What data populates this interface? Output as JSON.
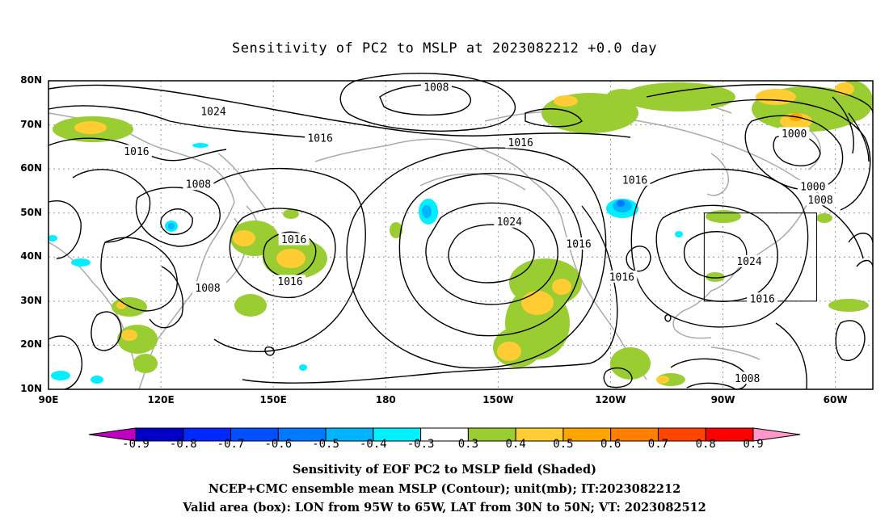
{
  "title": "Sensitivity of PC2 to MSLP at 2023082212 +0.0 day",
  "lat_labels": [
    "80N",
    "70N",
    "60N",
    "50N",
    "40N",
    "30N",
    "20N",
    "10N"
  ],
  "lon_labels": [
    "90E",
    "120E",
    "150E",
    "180",
    "150W",
    "120W",
    "90W",
    "60W"
  ],
  "contour_labels": [
    {
      "text": "1024",
      "lon": 134,
      "lat": 73
    },
    {
      "text": "1008",
      "lon": -166.5,
      "lat": 78.5
    },
    {
      "text": "1016",
      "lon": 162.5,
      "lat": 67
    },
    {
      "text": "1016",
      "lon": 113.5,
      "lat": 64
    },
    {
      "text": "1016",
      "lon": -144,
      "lat": 66
    },
    {
      "text": "1000",
      "lon": -71,
      "lat": 68
    },
    {
      "text": "1016",
      "lon": -113.5,
      "lat": 57.5
    },
    {
      "text": "1000",
      "lon": -66,
      "lat": 56
    },
    {
      "text": "1008",
      "lon": -64,
      "lat": 53
    },
    {
      "text": "1008",
      "lon": 130,
      "lat": 56.5
    },
    {
      "text": "1024",
      "lon": -147,
      "lat": 48
    },
    {
      "text": "1016",
      "lon": -128.5,
      "lat": 43
    },
    {
      "text": "1016",
      "lon": 155.5,
      "lat": 44
    },
    {
      "text": "1024",
      "lon": -83,
      "lat": 39
    },
    {
      "text": "1016",
      "lon": 154.5,
      "lat": 34.5
    },
    {
      "text": "1016",
      "lon": -117,
      "lat": 35.5
    },
    {
      "text": "1008",
      "lon": 132.5,
      "lat": 33
    },
    {
      "text": "1016",
      "lon": -79.5,
      "lat": 30.5
    },
    {
      "text": "1008",
      "lon": -83.5,
      "lat": 12.5
    }
  ],
  "valid_box": {
    "lon_min": -95,
    "lon_max": -65,
    "lat_min": 30,
    "lat_max": 50
  },
  "colorbar": {
    "labels": [
      "-0.9",
      "-0.8",
      "-0.7",
      "-0.6",
      "-0.5",
      "-0.4",
      "-0.3",
      "0.3",
      "0.4",
      "0.5",
      "0.6",
      "0.7",
      "0.8",
      "0.9"
    ],
    "colors": [
      "#c000c0",
      "#0000c8",
      "#0028ff",
      "#0050ff",
      "#0078ff",
      "#00b4ff",
      "#00f0ff",
      "#ffffff",
      "#9acd32",
      "#ffcc33",
      "#ffa500",
      "#ff7f00",
      "#ff4500",
      "#ff0000",
      "#ff99cc"
    ]
  },
  "captions": [
    "Sensitivity of EOF PC2 to MSLP field (Shaded)",
    "NCEP+CMC ensemble mean MSLP (Contour); unit(mb); IT:2023082212",
    "Valid area (box): LON from 95W to 65W, LAT from 30N to 50N; VT: 2023082512"
  ]
}
